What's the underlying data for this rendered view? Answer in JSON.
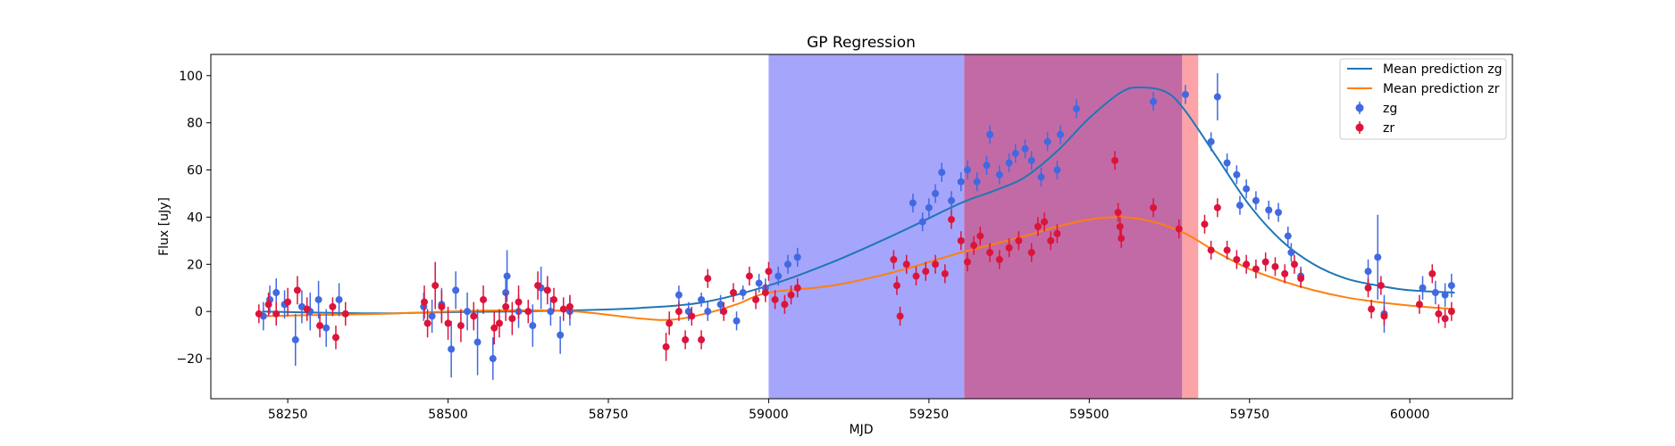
{
  "chart_data": {
    "type": "scatter",
    "title": "GP Regression",
    "xlabel": "MJD",
    "ylabel": "Flux [uJy]",
    "xlim": [
      58130,
      60160
    ],
    "ylim": [
      -37,
      109
    ],
    "xticks": [
      58250,
      58500,
      58750,
      59000,
      59250,
      59500,
      59750,
      60000
    ],
    "yticks": [
      -20,
      0,
      20,
      40,
      60,
      80,
      100
    ],
    "legend_position": "upper right",
    "shaded_regions": [
      {
        "x0": 59000,
        "x1": 59305,
        "color": "#a5a5fc"
      },
      {
        "x0": 59305,
        "x1": 59645,
        "color": "#c26aa6"
      },
      {
        "x0": 59645,
        "x1": 59670,
        "color": "#fca3a7"
      }
    ],
    "lines": [
      {
        "name": "Mean prediction zg",
        "color": "#1f77b4",
        "x": [
          58210,
          58300,
          58400,
          58500,
          58600,
          58700,
          58800,
          58900,
          59000,
          59100,
          59200,
          59300,
          59350,
          59400,
          59450,
          59500,
          59550,
          59580,
          59620,
          59650,
          59700,
          59750,
          59800,
          59850,
          59900,
          59950,
          60000,
          60070
        ],
        "y": [
          0,
          -0.5,
          -0.8,
          -0.3,
          0,
          0.5,
          1.5,
          4,
          11,
          21,
          33,
          46,
          51,
          57,
          68,
          82,
          93,
          95,
          93,
          85,
          65,
          45,
          30,
          20,
          14,
          11,
          9,
          8
        ]
      },
      {
        "name": "Mean prediction zr",
        "color": "#ff7f0e",
        "x": [
          58210,
          58300,
          58400,
          58500,
          58600,
          58700,
          58800,
          58850,
          58900,
          58950,
          59000,
          59100,
          59200,
          59300,
          59400,
          59450,
          59500,
          59550,
          59600,
          59650,
          59700,
          59750,
          59800,
          59850,
          59900,
          59950,
          60000,
          60070
        ],
        "y": [
          -2,
          -1.5,
          -1,
          0,
          0.5,
          0,
          -3,
          -3.5,
          -1,
          3,
          8,
          11,
          17,
          25,
          32,
          36,
          39,
          40,
          38,
          33,
          25,
          18,
          13,
          9,
          6,
          4,
          2.5,
          1
        ]
      }
    ],
    "series": [
      {
        "name": "zg",
        "color": "#4169e1",
        "points": [
          [
            58212,
            -2,
            6
          ],
          [
            58222,
            5,
            6
          ],
          [
            58232,
            8,
            6
          ],
          [
            58245,
            3,
            6
          ],
          [
            58262,
            -12,
            11
          ],
          [
            58272,
            2,
            7
          ],
          [
            58285,
            0,
            8
          ],
          [
            58298,
            5,
            8
          ],
          [
            58310,
            -7,
            8
          ],
          [
            58330,
            5,
            7
          ],
          [
            58462,
            2,
            6
          ],
          [
            58475,
            -2,
            7
          ],
          [
            58490,
            3,
            7
          ],
          [
            58505,
            -16,
            12
          ],
          [
            58512,
            9,
            8
          ],
          [
            58530,
            0,
            8
          ],
          [
            58546,
            -13,
            14
          ],
          [
            58570,
            -20,
            9
          ],
          [
            58590,
            8,
            8
          ],
          [
            58592,
            15,
            11
          ],
          [
            58610,
            0,
            7
          ],
          [
            58632,
            -6,
            9
          ],
          [
            58645,
            10,
            9
          ],
          [
            58660,
            0,
            6
          ],
          [
            58675,
            -10,
            8
          ],
          [
            58690,
            0,
            6
          ],
          [
            58860,
            7,
            4
          ],
          [
            58875,
            0,
            4
          ],
          [
            58895,
            5,
            3
          ],
          [
            58905,
            0,
            4
          ],
          [
            58925,
            3,
            4
          ],
          [
            58950,
            -4,
            4
          ],
          [
            58960,
            8,
            3
          ],
          [
            58985,
            12,
            4
          ],
          [
            58995,
            10,
            4
          ],
          [
            59015,
            15,
            4
          ],
          [
            59030,
            20,
            4
          ],
          [
            59045,
            23,
            4
          ],
          [
            59225,
            46,
            4
          ],
          [
            59240,
            38,
            4
          ],
          [
            59250,
            44,
            4
          ],
          [
            59260,
            50,
            4
          ],
          [
            59270,
            59,
            4
          ],
          [
            59285,
            47,
            4
          ],
          [
            59300,
            55,
            4
          ],
          [
            59310,
            60,
            4
          ],
          [
            59325,
            55,
            4
          ],
          [
            59340,
            62,
            4
          ],
          [
            59345,
            75,
            4
          ],
          [
            59360,
            58,
            4
          ],
          [
            59375,
            63,
            4
          ],
          [
            59385,
            67,
            4
          ],
          [
            59400,
            69,
            4
          ],
          [
            59410,
            64,
            4
          ],
          [
            59425,
            57,
            4
          ],
          [
            59435,
            72,
            4
          ],
          [
            59450,
            60,
            4
          ],
          [
            59455,
            75,
            4
          ],
          [
            59480,
            86,
            4
          ],
          [
            59600,
            89,
            4
          ],
          [
            59650,
            92,
            4
          ],
          [
            59690,
            72,
            4
          ],
          [
            59700,
            91,
            10
          ],
          [
            59715,
            63,
            4
          ],
          [
            59730,
            58,
            4
          ],
          [
            59735,
            45,
            4
          ],
          [
            59745,
            52,
            4
          ],
          [
            59760,
            47,
            4
          ],
          [
            59780,
            43,
            4
          ],
          [
            59795,
            42,
            4
          ],
          [
            59810,
            32,
            4
          ],
          [
            59815,
            25,
            4
          ],
          [
            59830,
            15,
            4
          ],
          [
            59935,
            17,
            5
          ],
          [
            59950,
            23,
            18
          ],
          [
            59960,
            -1,
            8
          ],
          [
            60020,
            10,
            5
          ],
          [
            60040,
            8,
            5
          ],
          [
            60055,
            7,
            5
          ],
          [
            60065,
            11,
            5
          ]
        ]
      },
      {
        "name": "zr",
        "color": "#dc143c",
        "points": [
          [
            58205,
            -1,
            4
          ],
          [
            58220,
            3,
            5
          ],
          [
            58232,
            -1,
            5
          ],
          [
            58250,
            4,
            6
          ],
          [
            58265,
            9,
            6
          ],
          [
            58280,
            1,
            5
          ],
          [
            58300,
            -6,
            5
          ],
          [
            58320,
            2,
            4
          ],
          [
            58325,
            -11,
            5
          ],
          [
            58340,
            -1,
            5
          ],
          [
            58463,
            4,
            7
          ],
          [
            58468,
            -5,
            6
          ],
          [
            58480,
            11,
            10
          ],
          [
            58490,
            2,
            7
          ],
          [
            58500,
            -5,
            7
          ],
          [
            58520,
            -6,
            7
          ],
          [
            58540,
            -2,
            6
          ],
          [
            58555,
            5,
            6
          ],
          [
            58572,
            -7,
            7
          ],
          [
            58580,
            -5,
            6
          ],
          [
            58590,
            2,
            6
          ],
          [
            58600,
            -3,
            7
          ],
          [
            58610,
            4,
            7
          ],
          [
            58625,
            0,
            5
          ],
          [
            58640,
            11,
            6
          ],
          [
            58655,
            9,
            6
          ],
          [
            58665,
            5,
            5
          ],
          [
            58680,
            1,
            5
          ],
          [
            58690,
            2,
            5
          ],
          [
            58840,
            -15,
            6
          ],
          [
            58845,
            -5,
            5
          ],
          [
            58860,
            0,
            4
          ],
          [
            58870,
            -12,
            4
          ],
          [
            58880,
            -2,
            4
          ],
          [
            58895,
            -12,
            4
          ],
          [
            58905,
            14,
            4
          ],
          [
            58930,
            0,
            4
          ],
          [
            58945,
            8,
            4
          ],
          [
            58970,
            15,
            4
          ],
          [
            58980,
            5,
            4
          ],
          [
            58995,
            8,
            4
          ],
          [
            59000,
            17,
            4
          ],
          [
            59010,
            5,
            4
          ],
          [
            59025,
            3,
            4
          ],
          [
            59035,
            7,
            4
          ],
          [
            59045,
            10,
            4
          ],
          [
            59195,
            22,
            4
          ],
          [
            59200,
            11,
            4
          ],
          [
            59205,
            -2,
            4
          ],
          [
            59215,
            20,
            4
          ],
          [
            59230,
            15,
            4
          ],
          [
            59245,
            17,
            4
          ],
          [
            59260,
            20,
            4
          ],
          [
            59275,
            16,
            4
          ],
          [
            59285,
            39,
            4
          ],
          [
            59300,
            30,
            4
          ],
          [
            59310,
            21,
            4
          ],
          [
            59320,
            28,
            4
          ],
          [
            59330,
            32,
            4
          ],
          [
            59345,
            25,
            4
          ],
          [
            59360,
            22,
            4
          ],
          [
            59375,
            27,
            4
          ],
          [
            59390,
            30,
            4
          ],
          [
            59410,
            25,
            4
          ],
          [
            59420,
            36,
            4
          ],
          [
            59430,
            38,
            4
          ],
          [
            59440,
            30,
            4
          ],
          [
            59450,
            33,
            4
          ],
          [
            59540,
            64,
            4
          ],
          [
            59545,
            42,
            4
          ],
          [
            59548,
            36,
            4
          ],
          [
            59550,
            31,
            4
          ],
          [
            59600,
            44,
            4
          ],
          [
            59640,
            35,
            4
          ],
          [
            59680,
            37,
            4
          ],
          [
            59690,
            26,
            4
          ],
          [
            59700,
            44,
            4
          ],
          [
            59715,
            26,
            4
          ],
          [
            59730,
            22,
            4
          ],
          [
            59745,
            20,
            4
          ],
          [
            59760,
            18,
            4
          ],
          [
            59775,
            21,
            4
          ],
          [
            59790,
            19,
            4
          ],
          [
            59805,
            16,
            4
          ],
          [
            59820,
            20,
            4
          ],
          [
            59830,
            14,
            4
          ],
          [
            59935,
            10,
            4
          ],
          [
            59940,
            1,
            4
          ],
          [
            59955,
            11,
            4
          ],
          [
            59960,
            -2,
            4
          ],
          [
            60015,
            3,
            4
          ],
          [
            60035,
            16,
            4
          ],
          [
            60045,
            -1,
            4
          ],
          [
            60055,
            -3,
            4
          ],
          [
            60065,
            0,
            4
          ]
        ]
      }
    ]
  }
}
